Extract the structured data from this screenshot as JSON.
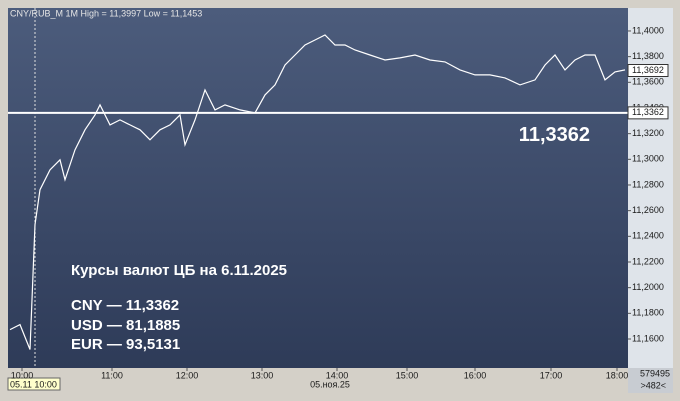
{
  "chart_data": {
    "type": "line",
    "title": "CNY/RUB_M 1M High = 11,3997 Low = 11,1453",
    "x": [
      2,
      12,
      22,
      27,
      32,
      42,
      52,
      57,
      67,
      77,
      87,
      92,
      102,
      112,
      122,
      132,
      142,
      152,
      162,
      172,
      177,
      187,
      197,
      207,
      217,
      232,
      247,
      257,
      267,
      277,
      287,
      297,
      307,
      317,
      327,
      337,
      347,
      362,
      377,
      392,
      407,
      422,
      437,
      452,
      467,
      482,
      497,
      512,
      527,
      537,
      547,
      557,
      567,
      577,
      587,
      597,
      607,
      617
    ],
    "values": [
      11.1673,
      11.1712,
      11.1518,
      11.2491,
      11.2763,
      11.2918,
      11.2996,
      11.2841,
      11.3074,
      11.323,
      11.3346,
      11.3424,
      11.3268,
      11.3307,
      11.3268,
      11.323,
      11.3152,
      11.323,
      11.3268,
      11.3346,
      11.3113,
      11.3307,
      11.3541,
      11.3385,
      11.3424,
      11.3385,
      11.3362,
      11.3502,
      11.358,
      11.3735,
      11.3813,
      11.3891,
      11.393,
      11.3969,
      11.3891,
      11.3891,
      11.3852,
      11.3813,
      11.3774,
      11.379,
      11.3813,
      11.3774,
      11.3759,
      11.3697,
      11.3658,
      11.3658,
      11.3634,
      11.358,
      11.3619,
      11.3735,
      11.3813,
      11.3697,
      11.3774,
      11.3813,
      11.3813,
      11.3619,
      11.3681,
      11.3697
    ],
    "color": "#ffffff",
    "xlim": [
      0,
      620
    ],
    "xticks": [
      {
        "value": 14,
        "label": "10:00"
      },
      {
        "value": 104,
        "label": "11:00"
      },
      {
        "value": 179,
        "label": "12:00"
      },
      {
        "value": 254,
        "label": "13:00"
      },
      {
        "value": 329,
        "label": "14:00"
      },
      {
        "value": 399,
        "label": "15:00"
      },
      {
        "value": 467,
        "label": "16:00"
      },
      {
        "value": 543,
        "label": "17:00"
      },
      {
        "value": 609,
        "label": "18:00"
      }
    ],
    "ylim": [
      11.1374,
      11.4179
    ],
    "yticks": [
      {
        "value": 11.16,
        "label": "11,1600"
      },
      {
        "value": 11.18,
        "label": "11,1800"
      },
      {
        "value": 11.2,
        "label": "11,2000"
      },
      {
        "value": 11.22,
        "label": "11,2200"
      },
      {
        "value": 11.24,
        "label": "11,2400"
      },
      {
        "value": 11.26,
        "label": "11,2600"
      },
      {
        "value": 11.28,
        "label": "11,2800"
      },
      {
        "value": 11.3,
        "label": "11,3000"
      },
      {
        "value": 11.32,
        "label": "11,3200"
      },
      {
        "value": 11.34,
        "label": "11,3400"
      },
      {
        "value": 11.36,
        "label": "11,3600"
      },
      {
        "value": 11.38,
        "label": "11,3800"
      },
      {
        "value": 11.4,
        "label": "11,4000"
      }
    ],
    "level": {
      "value": 11.3362,
      "label": "11,3362"
    },
    "last": {
      "value": 11.3692,
      "label": "11,3692"
    },
    "cursor_label": "05.11 10:00",
    "date_label": "05.ноя.25",
    "annotation": [
      "Курсы валют ЦБ на 6.11.2025",
      "CNY — 11,3362",
      "USD — 81,1885",
      "EUR — 93,5131"
    ],
    "volume": "579495",
    "nav": ">482<"
  }
}
